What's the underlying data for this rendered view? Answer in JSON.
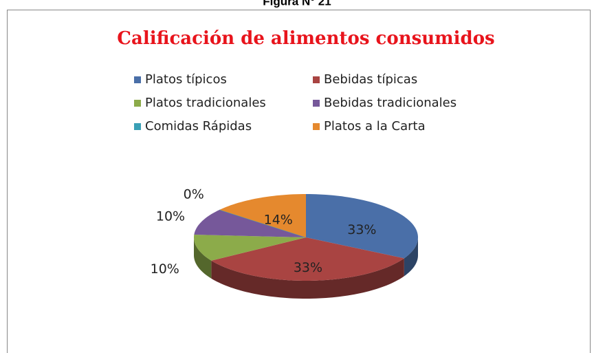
{
  "caption": "Figura N° 21",
  "chart_data": {
    "type": "pie3d",
    "title": "Calificación de alimentos consumidos",
    "categories": [
      "Platos típicos",
      "Bebidas típicas",
      "Platos tradicionales",
      "Bebidas tradicionales",
      "Comidas Rápidas",
      "Platos a la Carta"
    ],
    "values": [
      33,
      33,
      10,
      10,
      0,
      14
    ],
    "value_labels": [
      "33%",
      "33%",
      "10%",
      "10%",
      "0%",
      "14%"
    ],
    "colors": [
      "#4a6fa8",
      "#a94442",
      "#8cab4a",
      "#76589a",
      "#3aa0b6",
      "#e5892e"
    ]
  }
}
